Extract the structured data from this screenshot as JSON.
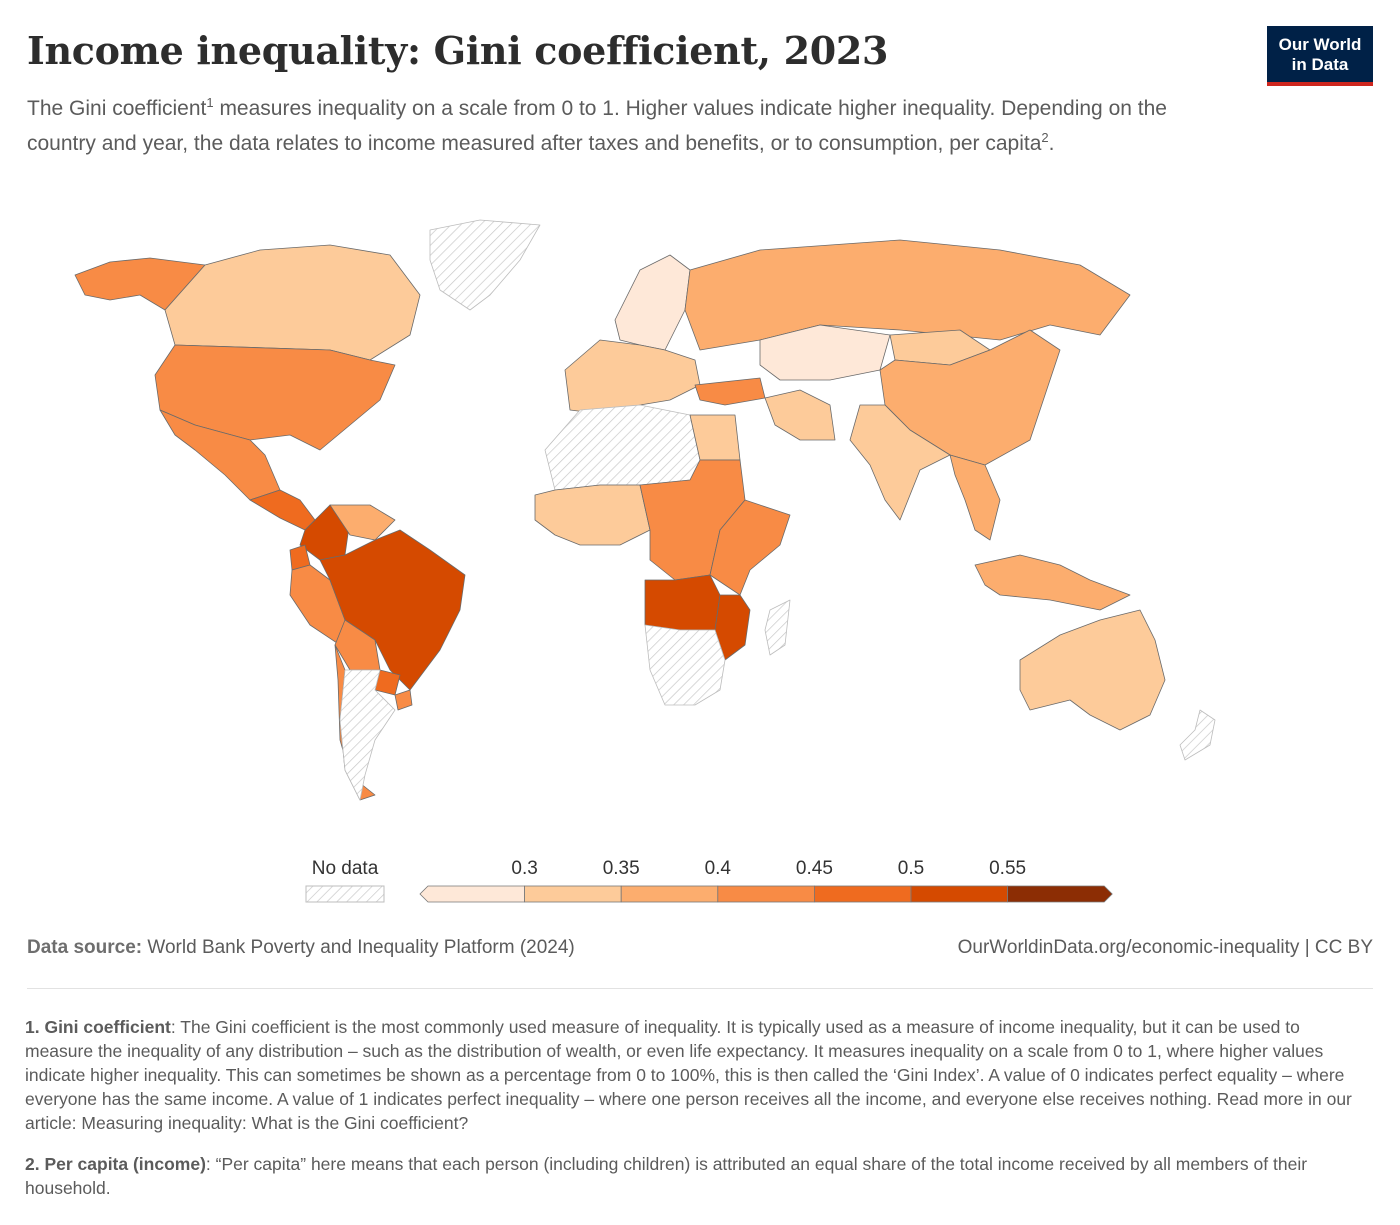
{
  "header": {
    "title": "Income inequality: Gini coefficient, 2023",
    "subtitle_part1": "The Gini coefficient",
    "subtitle_sup1": "1",
    "subtitle_part2": " measures inequality on a scale from 0 to 1. Higher values indicate higher inequality. Depending on the country and year, the data relates to income measured after taxes and benefits, or to consumption, per capita",
    "subtitle_sup2": "2",
    "subtitle_part3": "."
  },
  "logo": {
    "line1": "Our World",
    "line2": "in Data"
  },
  "colors": {
    "no_data_stroke": "#bdbdbd",
    "bins": [
      "#fee8d8",
      "#fdcb9a",
      "#fcad6e",
      "#f88b45",
      "#ef6b1f",
      "#d54a00",
      "#8c2d04"
    ],
    "border": "#6a6a6a"
  },
  "chart_data": {
    "type": "choropleth",
    "legend": {
      "no_data_label": "No data",
      "thresholds": [
        "0.3",
        "0.35",
        "0.4",
        "0.45",
        "0.5",
        "0.55"
      ]
    },
    "regions": [
      {
        "name": "Alaska (United States)",
        "bin": 3
      },
      {
        "name": "Canada",
        "bin": 1
      },
      {
        "name": "United States",
        "bin": 3
      },
      {
        "name": "Mexico",
        "bin": 3
      },
      {
        "name": "Central America",
        "bin": 4
      },
      {
        "name": "Colombia",
        "bin": 5
      },
      {
        "name": "Venezuela",
        "bin": 2
      },
      {
        "name": "Ecuador",
        "bin": 4
      },
      {
        "name": "Peru",
        "bin": 3
      },
      {
        "name": "Brazil",
        "bin": 5
      },
      {
        "name": "Bolivia",
        "bin": 3
      },
      {
        "name": "Paraguay",
        "bin": 4
      },
      {
        "name": "Uruguay",
        "bin": 3
      },
      {
        "name": "Chile",
        "bin": 3
      },
      {
        "name": "Argentina",
        "bin": null
      },
      {
        "name": "Greenland",
        "bin": null
      },
      {
        "name": "Northern Europe",
        "bin": 0
      },
      {
        "name": "Western Europe",
        "bin": 1
      },
      {
        "name": "Russia",
        "bin": 2
      },
      {
        "name": "Turkey",
        "bin": 3
      },
      {
        "name": "Kazakhstan",
        "bin": 0
      },
      {
        "name": "Mongolia",
        "bin": 1
      },
      {
        "name": "China",
        "bin": 2
      },
      {
        "name": "Iran",
        "bin": 1
      },
      {
        "name": "India",
        "bin": 1
      },
      {
        "name": "Southeast Asia",
        "bin": 2
      },
      {
        "name": "Indonesia",
        "bin": 2
      },
      {
        "name": "North Africa",
        "bin": null
      },
      {
        "name": "Egypt",
        "bin": 1
      },
      {
        "name": "West Africa",
        "bin": 1
      },
      {
        "name": "Central Africa",
        "bin": 3
      },
      {
        "name": "East Africa",
        "bin": 3
      },
      {
        "name": "Angola and Zambia",
        "bin": 5
      },
      {
        "name": "Mozambique",
        "bin": 5
      },
      {
        "name": "Namibia and South Africa",
        "bin": null
      },
      {
        "name": "Madagascar",
        "bin": null
      },
      {
        "name": "Australia",
        "bin": 1
      },
      {
        "name": "New Zealand",
        "bin": null
      }
    ]
  },
  "footer": {
    "source_label": "Data source:",
    "source_text": " World Bank Poverty and Inequality Platform (2024)",
    "url": "OurWorldinData.org/economic-inequality | CC BY"
  },
  "notes": [
    {
      "label": "1. Gini coefficient",
      "text": ": The Gini coefficient is the most commonly used measure of inequality. It is typically used as a measure of income inequality, but it can be used to measure the inequality of any distribution – such as the distribution of wealth, or even life expectancy. It measures inequality on a scale from 0 to 1, where higher values indicate higher inequality. This can sometimes be shown as a percentage from 0 to 100%, this is then called the ‘Gini Index’. A value of 0 indicates perfect equality – where everyone has the same income. A value of 1 indicates perfect inequality – where one person receives all the income, and everyone else receives nothing. Read more in our article: Measuring inequality: What is the Gini coefficient?"
    },
    {
      "label": "2. Per capita (income)",
      "text": ": “Per capita” here means that each person (including children) is attributed an equal share of the total income received by all members of their household."
    }
  ]
}
